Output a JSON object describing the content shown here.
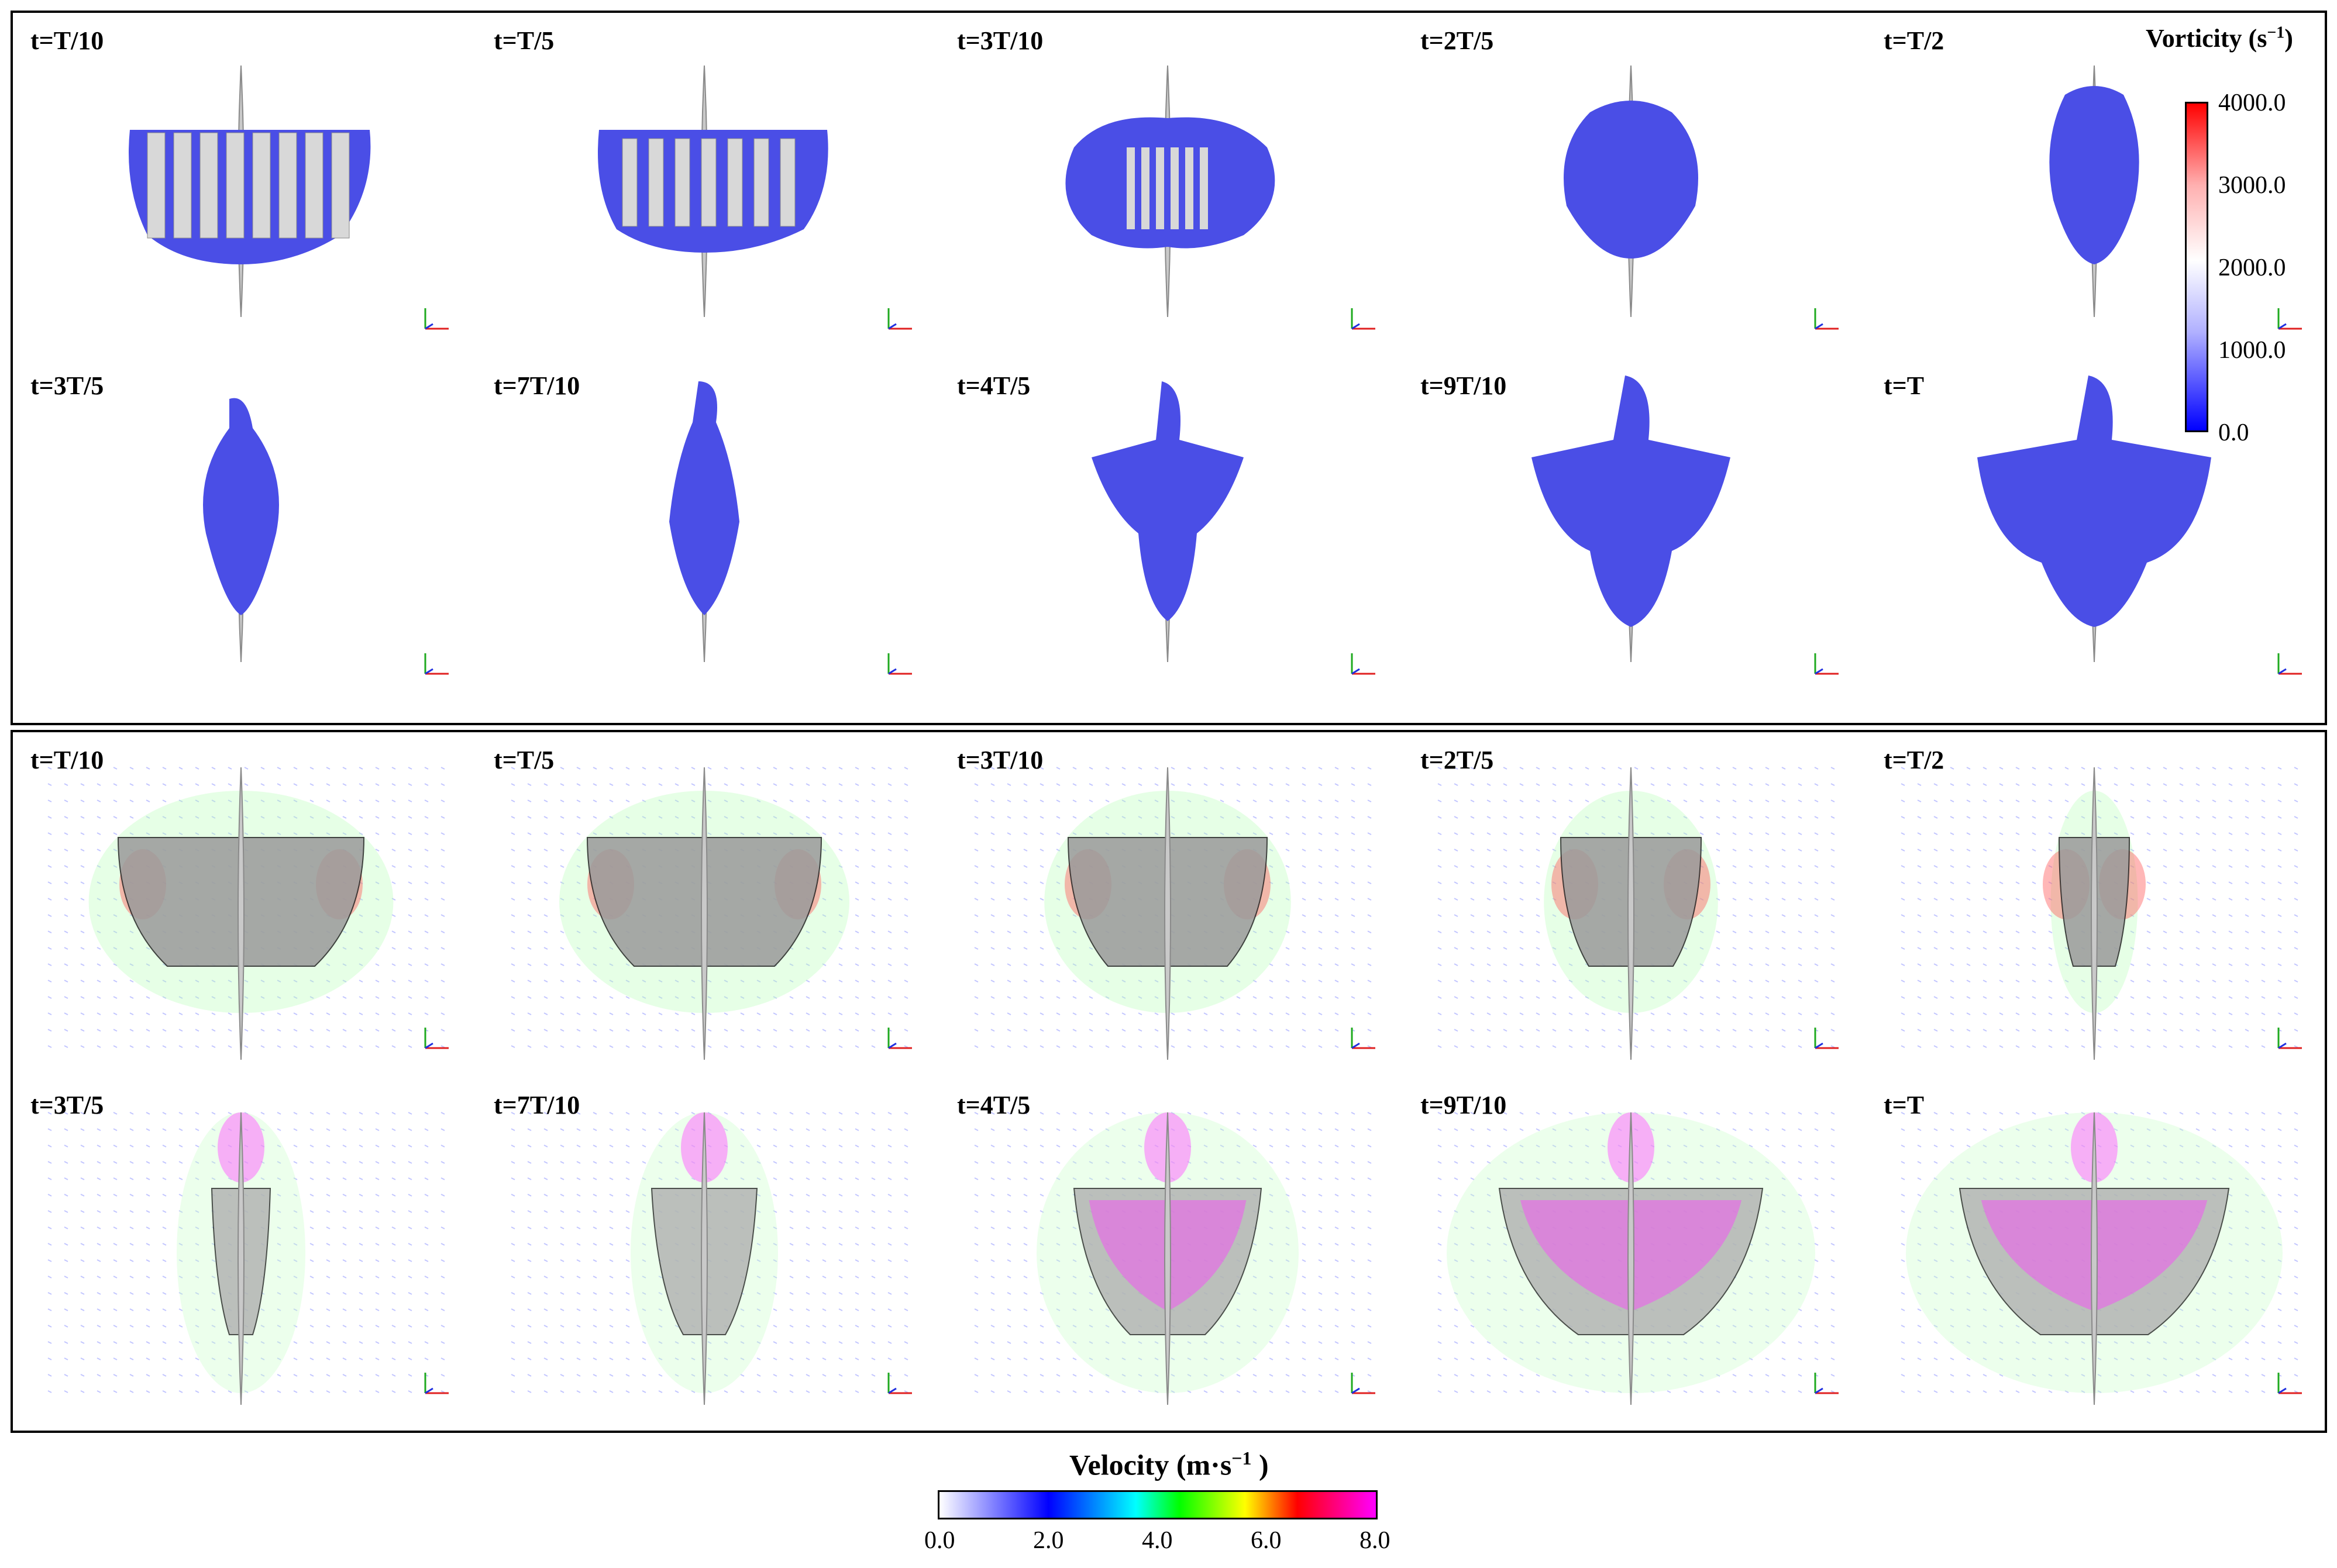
{
  "vorticity_panel": {
    "frames": [
      "t=T/10",
      "t=T/5",
      "t=3T/10",
      "t=2T/5",
      "t=T/2",
      "t=3T/5",
      "t=7T/10",
      "t=4T/5",
      "t=9T/10",
      "t=T"
    ],
    "colorbar": {
      "title": "Vorticity (s",
      "title_exp": "−1",
      "title_close": ")",
      "ticks": [
        "4000.0",
        "3000.0",
        "2000.0",
        "1000.0",
        "0.0"
      ],
      "colors": [
        "#ff0000",
        "#ffffff",
        "#0000ff"
      ]
    },
    "isosurface_color": "#4a4ee6"
  },
  "velocity_panel": {
    "frames": [
      "t=T/10",
      "t=T/5",
      "t=3T/10",
      "t=2T/5",
      "t=T/2",
      "t=3T/5",
      "t=7T/10",
      "t=4T/5",
      "t=9T/10",
      "t=T"
    ],
    "colorbar": {
      "title": "Velocity (m·s",
      "title_exp": "−1",
      "title_close": " )",
      "ticks": [
        "0.0",
        "2.0",
        "4.0",
        "6.0",
        "8.0"
      ],
      "colors": [
        "#ffffff",
        "#0000ff",
        "#00ffff",
        "#00ff00",
        "#ffff00",
        "#ff0000",
        "#ff00ff"
      ]
    }
  }
}
